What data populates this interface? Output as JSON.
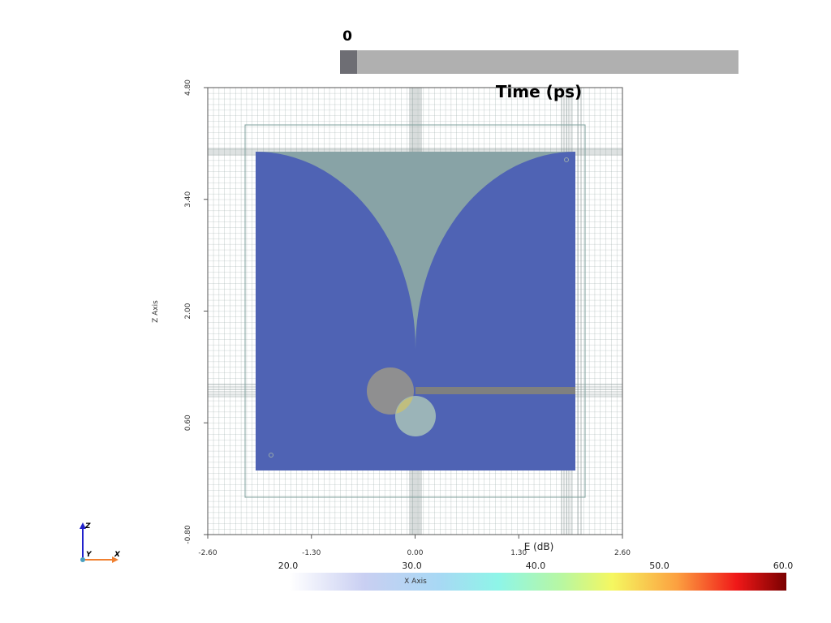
{
  "slider": {
    "value": "0",
    "title": "Time (ps)"
  },
  "plot": {
    "x_axis_label": "X Axis",
    "z_axis_label": "Z Axis",
    "x_ticks": [
      "-2.60",
      "-1.30",
      "0.00",
      "1.30",
      "2.60"
    ],
    "z_ticks": [
      "4.80",
      "3.40",
      "2.00",
      "0.60",
      "-0.80"
    ]
  },
  "colorbar": {
    "title": "E (dB)",
    "ticks": [
      "20.0",
      "30.0",
      "40.0",
      "50.0",
      "60.0"
    ]
  },
  "orientation": {
    "z": "Z",
    "y": "Y",
    "x": "X"
  }
}
